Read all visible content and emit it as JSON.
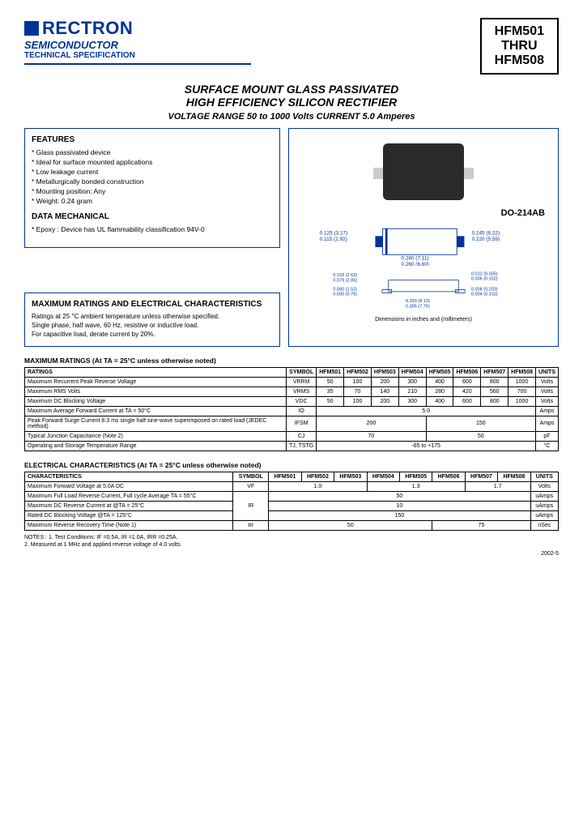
{
  "header": {
    "logo": "RECTRON",
    "semi": "SEMICONDUCTOR",
    "tech": "TECHNICAL SPECIFICATION",
    "part1": "HFM501",
    "thru": "THRU",
    "part2": "HFM508"
  },
  "title": {
    "l1": "SURFACE MOUNT GLASS PASSIVATED",
    "l2": "HIGH EFFICIENCY SILICON RECTIFIER",
    "l3": "VOLTAGE RANGE  50 to 1000 Volts    CURRENT 5.0 Amperes"
  },
  "features": {
    "title": "FEATURES",
    "items": [
      "Glass passivated device",
      "Ideal for surface mounted applications",
      "Low leakage current",
      "Metallurgically bonded construction",
      "Mounting position: Any",
      "Weight: 0.24 gram"
    ],
    "mech_title": "DATA MECHANICAL",
    "mech_item": "Epoxy : Device has UL flammability classification 94V-0"
  },
  "max": {
    "title": "MAXIMUM RATINGS AND ELECTRICAL CHARACTERISTICS",
    "line1": "Ratings at 25 °C ambient temperature unless otherwise specified.",
    "line2": "Single phase, half wave, 60 Hz, resistive or inductive load.",
    "line3": "For capacitive load, derate current by 20%."
  },
  "pkg": {
    "label": "DO-214AB",
    "dims1": "0.125 (3.17)\n0.115 (2.92)",
    "dims2": "0.245 (6.22)\n0.220 (5.59)",
    "dims3": "0.280 (7.11)\n0.260 (6.60)",
    "dims4": "0.103 (2.62)\n0.079 (2.06)",
    "dims5": "0.060 (1.52)\n0.030 (0.76)",
    "dims6": "0.012 (0.305)\n0.006 (0.152)",
    "dims7": "0.008 (0.203)\n0.004 (0.102)",
    "dims8": "0.320 (8.13)\n0.305 (7.75)",
    "note": "Dimensions in inches and (millimeters)"
  },
  "ratings": {
    "title": "MAXIMUM RATINGS (At TA = 25°C unless otherwise noted)",
    "head": [
      "RATINGS",
      "SYMBOL",
      "HFM501",
      "HFM502",
      "HFM503",
      "HFM504",
      "HFM505",
      "HFM506",
      "HFM507",
      "HFM508",
      "UNITS"
    ],
    "rows": [
      {
        "label": "Maximum Recurrent Peak Reverse Voltage",
        "sym": "VRRM",
        "vals": [
          "50",
          "100",
          "200",
          "300",
          "400",
          "600",
          "800",
          "1000"
        ],
        "unit": "Volts"
      },
      {
        "label": "Maximum RMS Volts",
        "sym": "VRMS",
        "vals": [
          "35",
          "70",
          "140",
          "210",
          "280",
          "420",
          "560",
          "700"
        ],
        "unit": "Volts"
      },
      {
        "label": "Maximum DC Blocking Voltage",
        "sym": "VDC",
        "vals": [
          "50",
          "100",
          "200",
          "300",
          "400",
          "600",
          "800",
          "1000"
        ],
        "unit": "Volts"
      },
      {
        "label": "Maximum Average Forward Current\nat TA = 50°C",
        "sym": "IO",
        "span": "5.0",
        "unit": "Amps"
      },
      {
        "label": "Peak Forward Surge Current 8.3 ms single half sine-wave superimposed on rated load (JEDEC method)",
        "sym": "IFSM",
        "spans": [
          {
            "c": 4,
            "v": "200"
          },
          {
            "c": 4,
            "v": "150"
          }
        ],
        "unit": "Amps"
      },
      {
        "label": "Typical Junction Capacitance (Note 2)",
        "sym": "CJ",
        "spans": [
          {
            "c": 4,
            "v": "70"
          },
          {
            "c": 4,
            "v": "50"
          }
        ],
        "unit": "pF"
      },
      {
        "label": "Operating and Storage Temperature Range",
        "sym": "TJ, TSTG",
        "span": "-65 to +175",
        "unit": "°C"
      }
    ]
  },
  "elec": {
    "title": "ELECTRICAL CHARACTERISTICS (At TA = 25°C unless otherwise noted)",
    "head": [
      "CHARACTERISTICS",
      "SYMBOL",
      "HFM501",
      "HFM502",
      "HFM503",
      "HFM504",
      "HFM505",
      "HFM506",
      "HFM507",
      "HFM508",
      "UNITS"
    ],
    "rows": [
      {
        "label": "Maximum Forward Voltage at 5.0A DC",
        "sym": "VF",
        "spans": [
          {
            "c": 3,
            "v": "1.0"
          },
          {
            "c": 3,
            "v": "1.3"
          },
          {
            "c": 2,
            "v": "1.7"
          }
        ],
        "unit": "Volts"
      },
      {
        "label": "Maximum Full Load Reverse Current, Full cycle Average TA = 55°C",
        "sym": "",
        "span": "50",
        "unit": "uAmps",
        "rsym": "IR",
        "rspan": 3
      },
      {
        "label": "Maximum DC Reverse Current at          @TA = 25°C",
        "sym": "",
        "span": "10",
        "unit": "uAmps"
      },
      {
        "label": "Rated DC Blocking Voltage                @TA = 125°C",
        "sym": "",
        "span": "150",
        "unit": "uAmps"
      },
      {
        "label": "Maximum Reverse Recovery Time (Note 1)",
        "sym": "trr",
        "spans": [
          {
            "c": 5,
            "v": "50"
          },
          {
            "c": 3,
            "v": "75"
          }
        ],
        "unit": "nSec"
      }
    ]
  },
  "notes": {
    "l1": "NOTES :  1. Test Conditions: IF =0.5A, IR =1.0A, IRR =0.25A.",
    "l2": "            2. Measured at 1 MHz and applied reverse voltage of 4.0 volts."
  },
  "version": "2002-5"
}
